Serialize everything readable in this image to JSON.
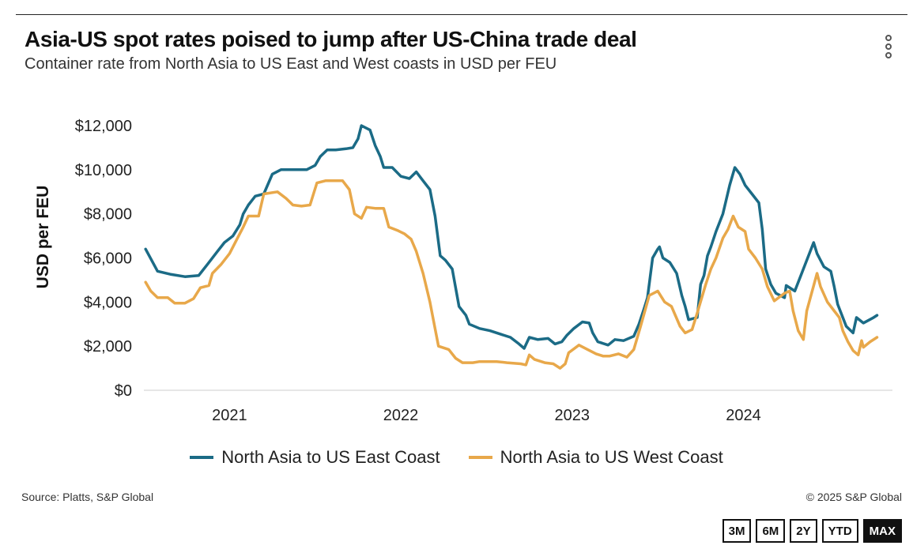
{
  "header": {
    "title": "Asia-US spot rates poised to jump after US-China trade deal",
    "subtitle": "Container rate from North Asia to US East and West coasts in USD per FEU"
  },
  "menu_icon": "kebab-menu-icon",
  "footer": {
    "source": "Source: Platts, S&P Global",
    "copyright": "© 2025 S&P Global"
  },
  "range_buttons": [
    {
      "label": "3M",
      "active": false
    },
    {
      "label": "6M",
      "active": false
    },
    {
      "label": "2Y",
      "active": false
    },
    {
      "label": "YTD",
      "active": false
    },
    {
      "label": "MAX",
      "active": true
    }
  ],
  "chart_data": {
    "type": "line",
    "title": "Asia-US spot rates poised to jump after US-China trade deal",
    "subtitle": "Container rate from North Asia to US East and West coasts in USD per FEU",
    "xlabel": "",
    "ylabel": "USD per FEU",
    "xlim": [
      2020.5,
      2024.87
    ],
    "ylim": [
      0,
      12000
    ],
    "x_ticks": [
      2021,
      2022,
      2023,
      2024
    ],
    "x_tick_labels": [
      "2021",
      "2022",
      "2023",
      "2024"
    ],
    "y_ticks": [
      0,
      2000,
      4000,
      6000,
      8000,
      10000,
      12000
    ],
    "y_tick_labels": [
      "$0",
      "$2,000",
      "$4,000",
      "$6,000",
      "$8,000",
      "$10,000",
      "$12,000"
    ],
    "grid": false,
    "legend_position": "bottom",
    "series": [
      {
        "name": "North Asia to US East Coast",
        "color": "#1b6b86",
        "points": [
          [
            2020.51,
            6400
          ],
          [
            2020.58,
            5400
          ],
          [
            2020.66,
            5250
          ],
          [
            2020.74,
            5150
          ],
          [
            2020.82,
            5200
          ],
          [
            2020.87,
            5700
          ],
          [
            2020.93,
            6300
          ],
          [
            2020.97,
            6700
          ],
          [
            2021.02,
            7000
          ],
          [
            2021.06,
            7500
          ],
          [
            2021.08,
            8000
          ],
          [
            2021.11,
            8400
          ],
          [
            2021.15,
            8800
          ],
          [
            2021.2,
            8900
          ],
          [
            2021.25,
            9800
          ],
          [
            2021.3,
            10000
          ],
          [
            2021.37,
            10000
          ],
          [
            2021.45,
            10000
          ],
          [
            2021.5,
            10200
          ],
          [
            2021.53,
            10600
          ],
          [
            2021.57,
            10900
          ],
          [
            2021.62,
            10900
          ],
          [
            2021.68,
            10950
          ],
          [
            2021.72,
            11000
          ],
          [
            2021.75,
            11400
          ],
          [
            2021.77,
            12000
          ],
          [
            2021.82,
            11800
          ],
          [
            2021.85,
            11100
          ],
          [
            2021.88,
            10600
          ],
          [
            2021.9,
            10100
          ],
          [
            2021.95,
            10100
          ],
          [
            2022.0,
            9700
          ],
          [
            2022.05,
            9600
          ],
          [
            2022.09,
            9900
          ],
          [
            2022.13,
            9500
          ],
          [
            2022.17,
            9100
          ],
          [
            2022.2,
            7900
          ],
          [
            2022.23,
            6100
          ],
          [
            2022.26,
            5900
          ],
          [
            2022.3,
            5500
          ],
          [
            2022.34,
            3800
          ],
          [
            2022.38,
            3400
          ],
          [
            2022.4,
            3000
          ],
          [
            2022.46,
            2800
          ],
          [
            2022.52,
            2700
          ],
          [
            2022.58,
            2550
          ],
          [
            2022.64,
            2400
          ],
          [
            2022.69,
            2100
          ],
          [
            2022.72,
            1900
          ],
          [
            2022.75,
            2400
          ],
          [
            2022.8,
            2300
          ],
          [
            2022.86,
            2350
          ],
          [
            2022.9,
            2100
          ],
          [
            2022.94,
            2200
          ],
          [
            2022.97,
            2500
          ],
          [
            2023.01,
            2800
          ],
          [
            2023.06,
            3100
          ],
          [
            2023.1,
            3050
          ],
          [
            2023.12,
            2600
          ],
          [
            2023.15,
            2200
          ],
          [
            2023.21,
            2050
          ],
          [
            2023.25,
            2300
          ],
          [
            2023.3,
            2250
          ],
          [
            2023.36,
            2450
          ],
          [
            2023.39,
            3000
          ],
          [
            2023.42,
            3700
          ],
          [
            2023.44,
            4200
          ],
          [
            2023.47,
            6000
          ],
          [
            2023.5,
            6400
          ],
          [
            2023.51,
            6500
          ],
          [
            2023.53,
            6000
          ],
          [
            2023.57,
            5800
          ],
          [
            2023.61,
            5300
          ],
          [
            2023.64,
            4300
          ],
          [
            2023.66,
            3800
          ],
          [
            2023.68,
            3200
          ],
          [
            2023.73,
            3300
          ],
          [
            2023.75,
            4800
          ],
          [
            2023.77,
            5200
          ],
          [
            2023.79,
            6100
          ],
          [
            2023.81,
            6500
          ],
          [
            2023.84,
            7200
          ],
          [
            2023.88,
            8000
          ],
          [
            2023.92,
            9300
          ],
          [
            2023.95,
            10100
          ],
          [
            2023.98,
            9800
          ],
          [
            2024.01,
            9300
          ],
          [
            2024.05,
            8900
          ],
          [
            2024.09,
            8500
          ],
          [
            2024.11,
            7300
          ],
          [
            2024.13,
            5500
          ],
          [
            2024.16,
            4800
          ],
          [
            2024.19,
            4400
          ],
          [
            2024.24,
            4200
          ],
          [
            2024.25,
            4750
          ],
          [
            2024.3,
            4500
          ],
          [
            2024.36,
            5700
          ],
          [
            2024.41,
            6700
          ],
          [
            2024.43,
            6200
          ],
          [
            2024.47,
            5600
          ],
          [
            2024.51,
            5400
          ],
          [
            2024.53,
            4700
          ],
          [
            2024.55,
            3900
          ],
          [
            2024.6,
            2900
          ],
          [
            2024.64,
            2600
          ],
          [
            2024.66,
            3300
          ],
          [
            2024.7,
            3050
          ],
          [
            2024.76,
            3300
          ],
          [
            2024.78,
            3400
          ]
        ]
      },
      {
        "name": "North Asia to US West Coast",
        "color": "#e8a84a",
        "points": [
          [
            2020.51,
            4900
          ],
          [
            2020.54,
            4500
          ],
          [
            2020.58,
            4200
          ],
          [
            2020.64,
            4200
          ],
          [
            2020.68,
            3950
          ],
          [
            2020.74,
            3950
          ],
          [
            2020.79,
            4150
          ],
          [
            2020.83,
            4650
          ],
          [
            2020.88,
            4750
          ],
          [
            2020.9,
            5300
          ],
          [
            2020.95,
            5700
          ],
          [
            2021.0,
            6200
          ],
          [
            2021.04,
            6800
          ],
          [
            2021.08,
            7400
          ],
          [
            2021.11,
            7900
          ],
          [
            2021.17,
            7900
          ],
          [
            2021.2,
            8900
          ],
          [
            2021.28,
            9000
          ],
          [
            2021.33,
            8700
          ],
          [
            2021.37,
            8400
          ],
          [
            2021.42,
            8350
          ],
          [
            2021.47,
            8400
          ],
          [
            2021.51,
            9400
          ],
          [
            2021.56,
            9500
          ],
          [
            2021.61,
            9500
          ],
          [
            2021.66,
            9500
          ],
          [
            2021.7,
            9100
          ],
          [
            2021.73,
            8000
          ],
          [
            2021.77,
            7800
          ],
          [
            2021.8,
            8300
          ],
          [
            2021.85,
            8250
          ],
          [
            2021.9,
            8250
          ],
          [
            2021.93,
            7400
          ],
          [
            2021.98,
            7250
          ],
          [
            2022.02,
            7100
          ],
          [
            2022.06,
            6850
          ],
          [
            2022.09,
            6300
          ],
          [
            2022.13,
            5300
          ],
          [
            2022.17,
            4000
          ],
          [
            2022.19,
            3200
          ],
          [
            2022.22,
            2000
          ],
          [
            2022.28,
            1850
          ],
          [
            2022.32,
            1450
          ],
          [
            2022.36,
            1250
          ],
          [
            2022.42,
            1250
          ],
          [
            2022.46,
            1300
          ],
          [
            2022.56,
            1300
          ],
          [
            2022.62,
            1250
          ],
          [
            2022.7,
            1200
          ],
          [
            2022.73,
            1150
          ],
          [
            2022.75,
            1600
          ],
          [
            2022.78,
            1400
          ],
          [
            2022.84,
            1250
          ],
          [
            2022.89,
            1200
          ],
          [
            2022.93,
            1000
          ],
          [
            2022.96,
            1200
          ],
          [
            2022.98,
            1700
          ],
          [
            2023.04,
            2050
          ],
          [
            2023.09,
            1850
          ],
          [
            2023.14,
            1650
          ],
          [
            2023.18,
            1550
          ],
          [
            2023.22,
            1550
          ],
          [
            2023.27,
            1650
          ],
          [
            2023.32,
            1500
          ],
          [
            2023.36,
            1850
          ],
          [
            2023.4,
            2900
          ],
          [
            2023.45,
            4300
          ],
          [
            2023.5,
            4500
          ],
          [
            2023.54,
            4000
          ],
          [
            2023.58,
            3800
          ],
          [
            2023.63,
            2900
          ],
          [
            2023.66,
            2600
          ],
          [
            2023.7,
            2750
          ],
          [
            2023.73,
            3500
          ],
          [
            2023.78,
            4800
          ],
          [
            2023.81,
            5500
          ],
          [
            2023.84,
            6000
          ],
          [
            2023.88,
            6900
          ],
          [
            2023.91,
            7300
          ],
          [
            2023.94,
            7900
          ],
          [
            2023.97,
            7400
          ],
          [
            2024.01,
            7200
          ],
          [
            2024.03,
            6400
          ],
          [
            2024.07,
            6000
          ],
          [
            2024.11,
            5500
          ],
          [
            2024.14,
            4700
          ],
          [
            2024.18,
            4050
          ],
          [
            2024.24,
            4400
          ],
          [
            2024.27,
            4500
          ],
          [
            2024.29,
            3600
          ],
          [
            2024.32,
            2700
          ],
          [
            2024.35,
            2300
          ],
          [
            2024.37,
            3600
          ],
          [
            2024.43,
            5300
          ],
          [
            2024.45,
            4700
          ],
          [
            2024.49,
            4000
          ],
          [
            2024.53,
            3600
          ],
          [
            2024.56,
            3300
          ],
          [
            2024.58,
            2700
          ],
          [
            2024.61,
            2200
          ],
          [
            2024.64,
            1800
          ],
          [
            2024.67,
            1600
          ],
          [
            2024.69,
            2250
          ],
          [
            2024.7,
            1950
          ],
          [
            2024.74,
            2200
          ],
          [
            2024.78,
            2400
          ]
        ]
      }
    ]
  }
}
